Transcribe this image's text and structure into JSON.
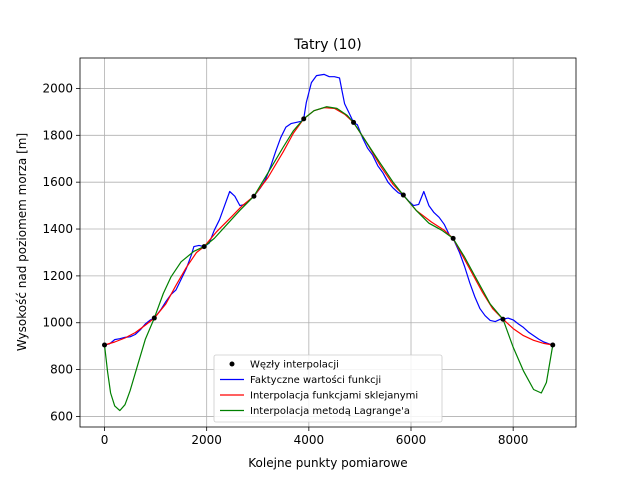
{
  "chart_data": {
    "type": "line",
    "title": "Tatry (10)",
    "xlabel": "Kolejne punkty pomiarowe",
    "ylabel": "Wysokość nad poziomem morza [m]",
    "xlim": [
      -480,
      9230
    ],
    "ylim": [
      555,
      2130
    ],
    "xticks": [
      0,
      2000,
      4000,
      6000,
      8000
    ],
    "yticks": [
      600,
      800,
      1000,
      1200,
      1400,
      1600,
      1800,
      2000
    ],
    "grid": true,
    "legend": "lower-center",
    "series": [
      {
        "name": "Węzły interpolacji",
        "kind": "scatter",
        "color": "#000000",
        "points": [
          [
            0,
            905
          ],
          [
            975,
            1020
          ],
          [
            1950,
            1325
          ],
          [
            2925,
            1540
          ],
          [
            3900,
            1870
          ],
          [
            4875,
            1855
          ],
          [
            5850,
            1545
          ],
          [
            6825,
            1360
          ],
          [
            7800,
            1015
          ],
          [
            8775,
            905
          ]
        ]
      },
      {
        "name": "Faktyczne wartości funkcji",
        "kind": "line",
        "color": "#0000ff",
        "points": [
          [
            0,
            905
          ],
          [
            100,
            910
          ],
          [
            200,
            928
          ],
          [
            300,
            932
          ],
          [
            400,
            938
          ],
          [
            500,
            940
          ],
          [
            600,
            950
          ],
          [
            700,
            970
          ],
          [
            800,
            995
          ],
          [
            900,
            1012
          ],
          [
            975,
            1020
          ],
          [
            1100,
            1055
          ],
          [
            1200,
            1090
          ],
          [
            1300,
            1120
          ],
          [
            1400,
            1140
          ],
          [
            1500,
            1185
          ],
          [
            1600,
            1230
          ],
          [
            1700,
            1290
          ],
          [
            1750,
            1325
          ],
          [
            1850,
            1330
          ],
          [
            1950,
            1325
          ],
          [
            2050,
            1340
          ],
          [
            2150,
            1395
          ],
          [
            2250,
            1440
          ],
          [
            2350,
            1500
          ],
          [
            2450,
            1560
          ],
          [
            2550,
            1540
          ],
          [
            2650,
            1500
          ],
          [
            2750,
            1505
          ],
          [
            2850,
            1525
          ],
          [
            2925,
            1540
          ],
          [
            3050,
            1575
          ],
          [
            3150,
            1610
          ],
          [
            3250,
            1665
          ],
          [
            3350,
            1730
          ],
          [
            3450,
            1790
          ],
          [
            3550,
            1835
          ],
          [
            3650,
            1850
          ],
          [
            3750,
            1855
          ],
          [
            3850,
            1860
          ],
          [
            3900,
            1870
          ],
          [
            3950,
            1940
          ],
          [
            4050,
            2025
          ],
          [
            4150,
            2055
          ],
          [
            4300,
            2060
          ],
          [
            4400,
            2050
          ],
          [
            4500,
            2050
          ],
          [
            4600,
            2045
          ],
          [
            4650,
            1990
          ],
          [
            4700,
            1935
          ],
          [
            4800,
            1890
          ],
          [
            4875,
            1855
          ],
          [
            4950,
            1845
          ],
          [
            5050,
            1790
          ],
          [
            5150,
            1745
          ],
          [
            5250,
            1715
          ],
          [
            5350,
            1670
          ],
          [
            5450,
            1640
          ],
          [
            5550,
            1600
          ],
          [
            5650,
            1575
          ],
          [
            5750,
            1555
          ],
          [
            5850,
            1545
          ],
          [
            5950,
            1520
          ],
          [
            6050,
            1500
          ],
          [
            6150,
            1505
          ],
          [
            6250,
            1560
          ],
          [
            6350,
            1500
          ],
          [
            6450,
            1470
          ],
          [
            6550,
            1450
          ],
          [
            6650,
            1420
          ],
          [
            6750,
            1375
          ],
          [
            6825,
            1360
          ],
          [
            6950,
            1300
          ],
          [
            7050,
            1240
          ],
          [
            7150,
            1170
          ],
          [
            7250,
            1110
          ],
          [
            7350,
            1060
          ],
          [
            7450,
            1030
          ],
          [
            7550,
            1010
          ],
          [
            7650,
            1005
          ],
          [
            7750,
            1015
          ],
          [
            7800,
            1015
          ],
          [
            7900,
            1020
          ],
          [
            8000,
            1012
          ],
          [
            8100,
            995
          ],
          [
            8200,
            980
          ],
          [
            8300,
            960
          ],
          [
            8400,
            945
          ],
          [
            8500,
            930
          ],
          [
            8600,
            918
          ],
          [
            8700,
            910
          ],
          [
            8775,
            905
          ]
        ]
      },
      {
        "name": "Interpolacja funkcjami sklejanymi",
        "kind": "line",
        "color": "#ff0000",
        "points": [
          [
            0,
            905
          ],
          [
            200,
            918
          ],
          [
            400,
            935
          ],
          [
            600,
            958
          ],
          [
            800,
            990
          ],
          [
            975,
            1020
          ],
          [
            1200,
            1080
          ],
          [
            1400,
            1160
          ],
          [
            1600,
            1235
          ],
          [
            1800,
            1300
          ],
          [
            1950,
            1325
          ],
          [
            2200,
            1390
          ],
          [
            2500,
            1455
          ],
          [
            2700,
            1500
          ],
          [
            2925,
            1540
          ],
          [
            3200,
            1620
          ],
          [
            3500,
            1730
          ],
          [
            3700,
            1810
          ],
          [
            3900,
            1870
          ],
          [
            4100,
            1905
          ],
          [
            4300,
            1918
          ],
          [
            4500,
            1915
          ],
          [
            4700,
            1890
          ],
          [
            4875,
            1855
          ],
          [
            5100,
            1780
          ],
          [
            5400,
            1670
          ],
          [
            5650,
            1590
          ],
          [
            5850,
            1545
          ],
          [
            6100,
            1480
          ],
          [
            6400,
            1430
          ],
          [
            6650,
            1395
          ],
          [
            6825,
            1360
          ],
          [
            7100,
            1250
          ],
          [
            7400,
            1130
          ],
          [
            7600,
            1060
          ],
          [
            7800,
            1015
          ],
          [
            8000,
            975
          ],
          [
            8200,
            945
          ],
          [
            8400,
            925
          ],
          [
            8600,
            912
          ],
          [
            8775,
            905
          ]
        ]
      },
      {
        "name": "Interpolacja metodą Lagrange'a",
        "kind": "line",
        "color": "#008000",
        "points": [
          [
            0,
            905
          ],
          [
            60,
            790
          ],
          [
            120,
            700
          ],
          [
            200,
            645
          ],
          [
            300,
            625
          ],
          [
            400,
            650
          ],
          [
            500,
            710
          ],
          [
            650,
            820
          ],
          [
            800,
            930
          ],
          [
            975,
            1020
          ],
          [
            1150,
            1125
          ],
          [
            1300,
            1195
          ],
          [
            1500,
            1260
          ],
          [
            1750,
            1305
          ],
          [
            1950,
            1325
          ],
          [
            2150,
            1360
          ],
          [
            2400,
            1420
          ],
          [
            2650,
            1480
          ],
          [
            2925,
            1540
          ],
          [
            3200,
            1640
          ],
          [
            3500,
            1750
          ],
          [
            3700,
            1820
          ],
          [
            3900,
            1870
          ],
          [
            4100,
            1905
          ],
          [
            4350,
            1922
          ],
          [
            4550,
            1915
          ],
          [
            4750,
            1885
          ],
          [
            4875,
            1855
          ],
          [
            5100,
            1780
          ],
          [
            5400,
            1680
          ],
          [
            5650,
            1600
          ],
          [
            5850,
            1545
          ],
          [
            6100,
            1480
          ],
          [
            6350,
            1425
          ],
          [
            6600,
            1395
          ],
          [
            6825,
            1360
          ],
          [
            7050,
            1280
          ],
          [
            7300,
            1180
          ],
          [
            7550,
            1080
          ],
          [
            7800,
            1015
          ],
          [
            8000,
            895
          ],
          [
            8200,
            795
          ],
          [
            8400,
            715
          ],
          [
            8550,
            700
          ],
          [
            8650,
            745
          ],
          [
            8775,
            905
          ]
        ]
      }
    ]
  }
}
